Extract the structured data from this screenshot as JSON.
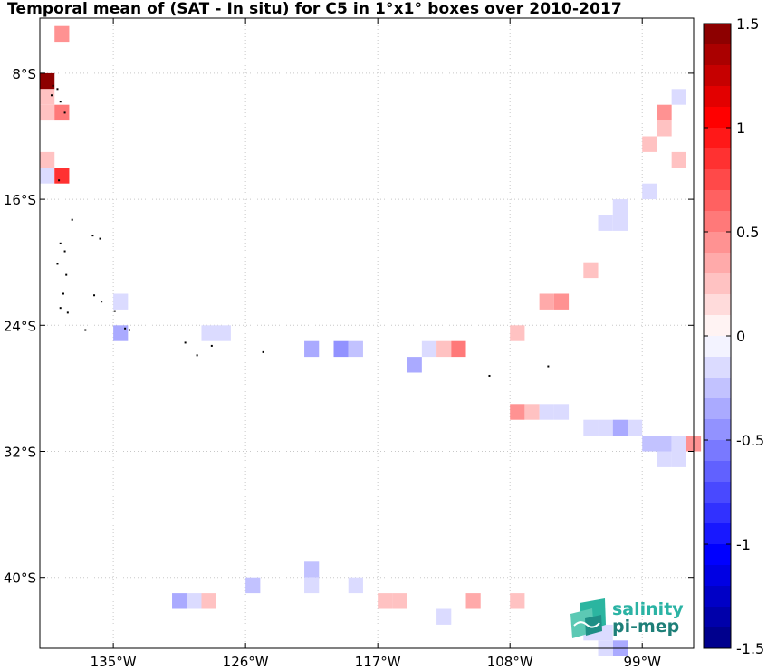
{
  "title": "Temporal mean of (SAT - In situ) for C5 in 1°x1° boxes over 2010-2017",
  "map": {
    "lon_range": [
      -140.0,
      -95.5
    ],
    "lat_range": [
      -44.5,
      -4.5
    ],
    "lat_ticks": [
      {
        "value": -8,
        "label": "8°S"
      },
      {
        "value": -16,
        "label": "16°S"
      },
      {
        "value": -24,
        "label": "24°S"
      },
      {
        "value": -32,
        "label": "32°S"
      },
      {
        "value": -40,
        "label": "40°S"
      }
    ],
    "lon_ticks": [
      {
        "value": -135,
        "label": "135°W"
      },
      {
        "value": -126,
        "label": "126°W"
      },
      {
        "value": -117,
        "label": "117°W"
      },
      {
        "value": -108,
        "label": "108°W"
      },
      {
        "value": -99,
        "label": "99°W"
      }
    ],
    "grid": true
  },
  "colorbar": {
    "range": [
      -1.5,
      1.5
    ],
    "ticks": [
      {
        "value": 1.5,
        "label": "1.5"
      },
      {
        "value": 1,
        "label": "1"
      },
      {
        "value": 0.5,
        "label": "0.5"
      },
      {
        "value": 0,
        "label": "0"
      },
      {
        "value": -0.5,
        "label": "-0.5"
      },
      {
        "value": -1,
        "label": "-1"
      },
      {
        "value": -1.5,
        "label": "-1.5"
      }
    ],
    "neg_color": "#00007f",
    "zero_color": "#ffffff",
    "pos_color": "#7f0000"
  },
  "chart_data": {
    "type": "heatmap",
    "variable": "SAT - In situ",
    "cells": [
      {
        "lon": -138.5,
        "lat": -5.5,
        "value": 0.4
      },
      {
        "lon": -139.5,
        "lat": -8.5,
        "value": 1.45
      },
      {
        "lon": -139.5,
        "lat": -9.5,
        "value": 0.2
      },
      {
        "lon": -139.5,
        "lat": -10.5,
        "value": 0.2
      },
      {
        "lon": -138.5,
        "lat": -10.5,
        "value": 0.5
      },
      {
        "lon": -139.5,
        "lat": -13.5,
        "value": 0.2
      },
      {
        "lon": -139.5,
        "lat": -14.5,
        "value": -0.1
      },
      {
        "lon": -138.5,
        "lat": -14.5,
        "value": 0.8
      },
      {
        "lon": -134.5,
        "lat": -22.5,
        "value": -0.15
      },
      {
        "lon": -134.5,
        "lat": -24.5,
        "value": -0.35
      },
      {
        "lon": -128.5,
        "lat": -24.5,
        "value": -0.12
      },
      {
        "lon": -127.5,
        "lat": -24.5,
        "value": -0.12
      },
      {
        "lon": -121.5,
        "lat": -25.5,
        "value": -0.35
      },
      {
        "lon": -119.5,
        "lat": -25.5,
        "value": -0.45
      },
      {
        "lon": -118.5,
        "lat": -25.5,
        "value": -0.25
      },
      {
        "lon": -114.5,
        "lat": -26.5,
        "value": -0.35
      },
      {
        "lon": -113.5,
        "lat": -25.5,
        "value": -0.1
      },
      {
        "lon": -112.5,
        "lat": -25.5,
        "value": 0.2
      },
      {
        "lon": -111.5,
        "lat": -25.5,
        "value": 0.55
      },
      {
        "lon": -107.5,
        "lat": -24.5,
        "value": 0.2
      },
      {
        "lon": -107.5,
        "lat": -29.5,
        "value": 0.45
      },
      {
        "lon": -106.5,
        "lat": -29.5,
        "value": 0.2
      },
      {
        "lon": -105.5,
        "lat": -29.5,
        "value": -0.15
      },
      {
        "lon": -104.5,
        "lat": -29.5,
        "value": -0.15
      },
      {
        "lon": -105.5,
        "lat": -22.5,
        "value": 0.35
      },
      {
        "lon": -104.5,
        "lat": -22.5,
        "value": 0.45
      },
      {
        "lon": -102.5,
        "lat": -20.5,
        "value": 0.2
      },
      {
        "lon": -101.5,
        "lat": -17.5,
        "value": -0.12
      },
      {
        "lon": -100.5,
        "lat": -17.5,
        "value": -0.12
      },
      {
        "lon": -100.5,
        "lat": -16.5,
        "value": -0.12
      },
      {
        "lon": -98.5,
        "lat": -15.5,
        "value": -0.12
      },
      {
        "lon": -98.5,
        "lat": -12.5,
        "value": 0.2
      },
      {
        "lon": -97.5,
        "lat": -11.5,
        "value": 0.3
      },
      {
        "lon": -97.5,
        "lat": -10.5,
        "value": 0.4
      },
      {
        "lon": -96.5,
        "lat": -9.5,
        "value": -0.12
      },
      {
        "lon": -96.5,
        "lat": -13.5,
        "value": 0.25
      },
      {
        "lon": -102.5,
        "lat": -30.5,
        "value": -0.12
      },
      {
        "lon": -101.5,
        "lat": -30.5,
        "value": -0.12
      },
      {
        "lon": -100.5,
        "lat": -30.5,
        "value": -0.35
      },
      {
        "lon": -99.5,
        "lat": -30.5,
        "value": -0.12
      },
      {
        "lon": -98.5,
        "lat": -31.5,
        "value": -0.25
      },
      {
        "lon": -97.5,
        "lat": -31.5,
        "value": -0.25
      },
      {
        "lon": -96.5,
        "lat": -31.5,
        "value": -0.12
      },
      {
        "lon": -95.5,
        "lat": -31.5,
        "value": 0.4
      },
      {
        "lon": -97.5,
        "lat": -32.5,
        "value": -0.12
      },
      {
        "lon": -96.5,
        "lat": -32.5,
        "value": -0.12
      },
      {
        "lon": -121.5,
        "lat": -39.5,
        "value": -0.25
      },
      {
        "lon": -121.5,
        "lat": -40.5,
        "value": -0.12
      },
      {
        "lon": -125.5,
        "lat": -40.5,
        "value": -0.3
      },
      {
        "lon": -118.5,
        "lat": -40.5,
        "value": -0.12
      },
      {
        "lon": -130.5,
        "lat": -41.5,
        "value": -0.35
      },
      {
        "lon": -129.5,
        "lat": -41.5,
        "value": -0.12
      },
      {
        "lon": -128.5,
        "lat": -41.5,
        "value": 0.2
      },
      {
        "lon": -116.5,
        "lat": -41.5,
        "value": 0.2
      },
      {
        "lon": -115.5,
        "lat": -41.5,
        "value": 0.2
      },
      {
        "lon": -110.5,
        "lat": -41.5,
        "value": 0.35
      },
      {
        "lon": -107.5,
        "lat": -41.5,
        "value": 0.2
      },
      {
        "lon": -112.5,
        "lat": -42.5,
        "value": -0.12
      },
      {
        "lon": -102.5,
        "lat": -43.5,
        "value": -0.12
      },
      {
        "lon": -101.5,
        "lat": -43.5,
        "value": -0.12
      },
      {
        "lon": -100.5,
        "lat": -44.5,
        "value": -0.35
      },
      {
        "lon": -101.5,
        "lat": -44.5,
        "value": -0.12
      }
    ],
    "islands": [
      {
        "lon": -139.1,
        "lat": -8.8
      },
      {
        "lon": -138.8,
        "lat": -9.0
      },
      {
        "lon": -139.2,
        "lat": -9.4
      },
      {
        "lon": -138.6,
        "lat": -9.8
      },
      {
        "lon": -138.3,
        "lat": -10.5
      },
      {
        "lon": -138.7,
        "lat": -14.8
      },
      {
        "lon": -137.8,
        "lat": -17.3
      },
      {
        "lon": -138.6,
        "lat": -18.8
      },
      {
        "lon": -138.3,
        "lat": -19.3
      },
      {
        "lon": -138.8,
        "lat": -20.1
      },
      {
        "lon": -138.2,
        "lat": -20.8
      },
      {
        "lon": -136.4,
        "lat": -18.3
      },
      {
        "lon": -135.9,
        "lat": -18.5
      },
      {
        "lon": -138.4,
        "lat": -22.0
      },
      {
        "lon": -136.3,
        "lat": -22.1
      },
      {
        "lon": -135.8,
        "lat": -22.5
      },
      {
        "lon": -138.6,
        "lat": -22.9
      },
      {
        "lon": -138.1,
        "lat": -23.2
      },
      {
        "lon": -134.9,
        "lat": -23.1
      },
      {
        "lon": -136.9,
        "lat": -24.3
      },
      {
        "lon": -134.2,
        "lat": -24.2
      },
      {
        "lon": -133.9,
        "lat": -24.3
      },
      {
        "lon": -130.1,
        "lat": -25.1
      },
      {
        "lon": -129.3,
        "lat": -25.9
      },
      {
        "lon": -128.3,
        "lat": -25.3
      },
      {
        "lon": -124.8,
        "lat": -25.7
      },
      {
        "lon": -109.4,
        "lat": -27.2
      },
      {
        "lon": -105.4,
        "lat": -26.6
      }
    ]
  },
  "logo": {
    "line1": "salinity",
    "line2": "pi-mep"
  }
}
